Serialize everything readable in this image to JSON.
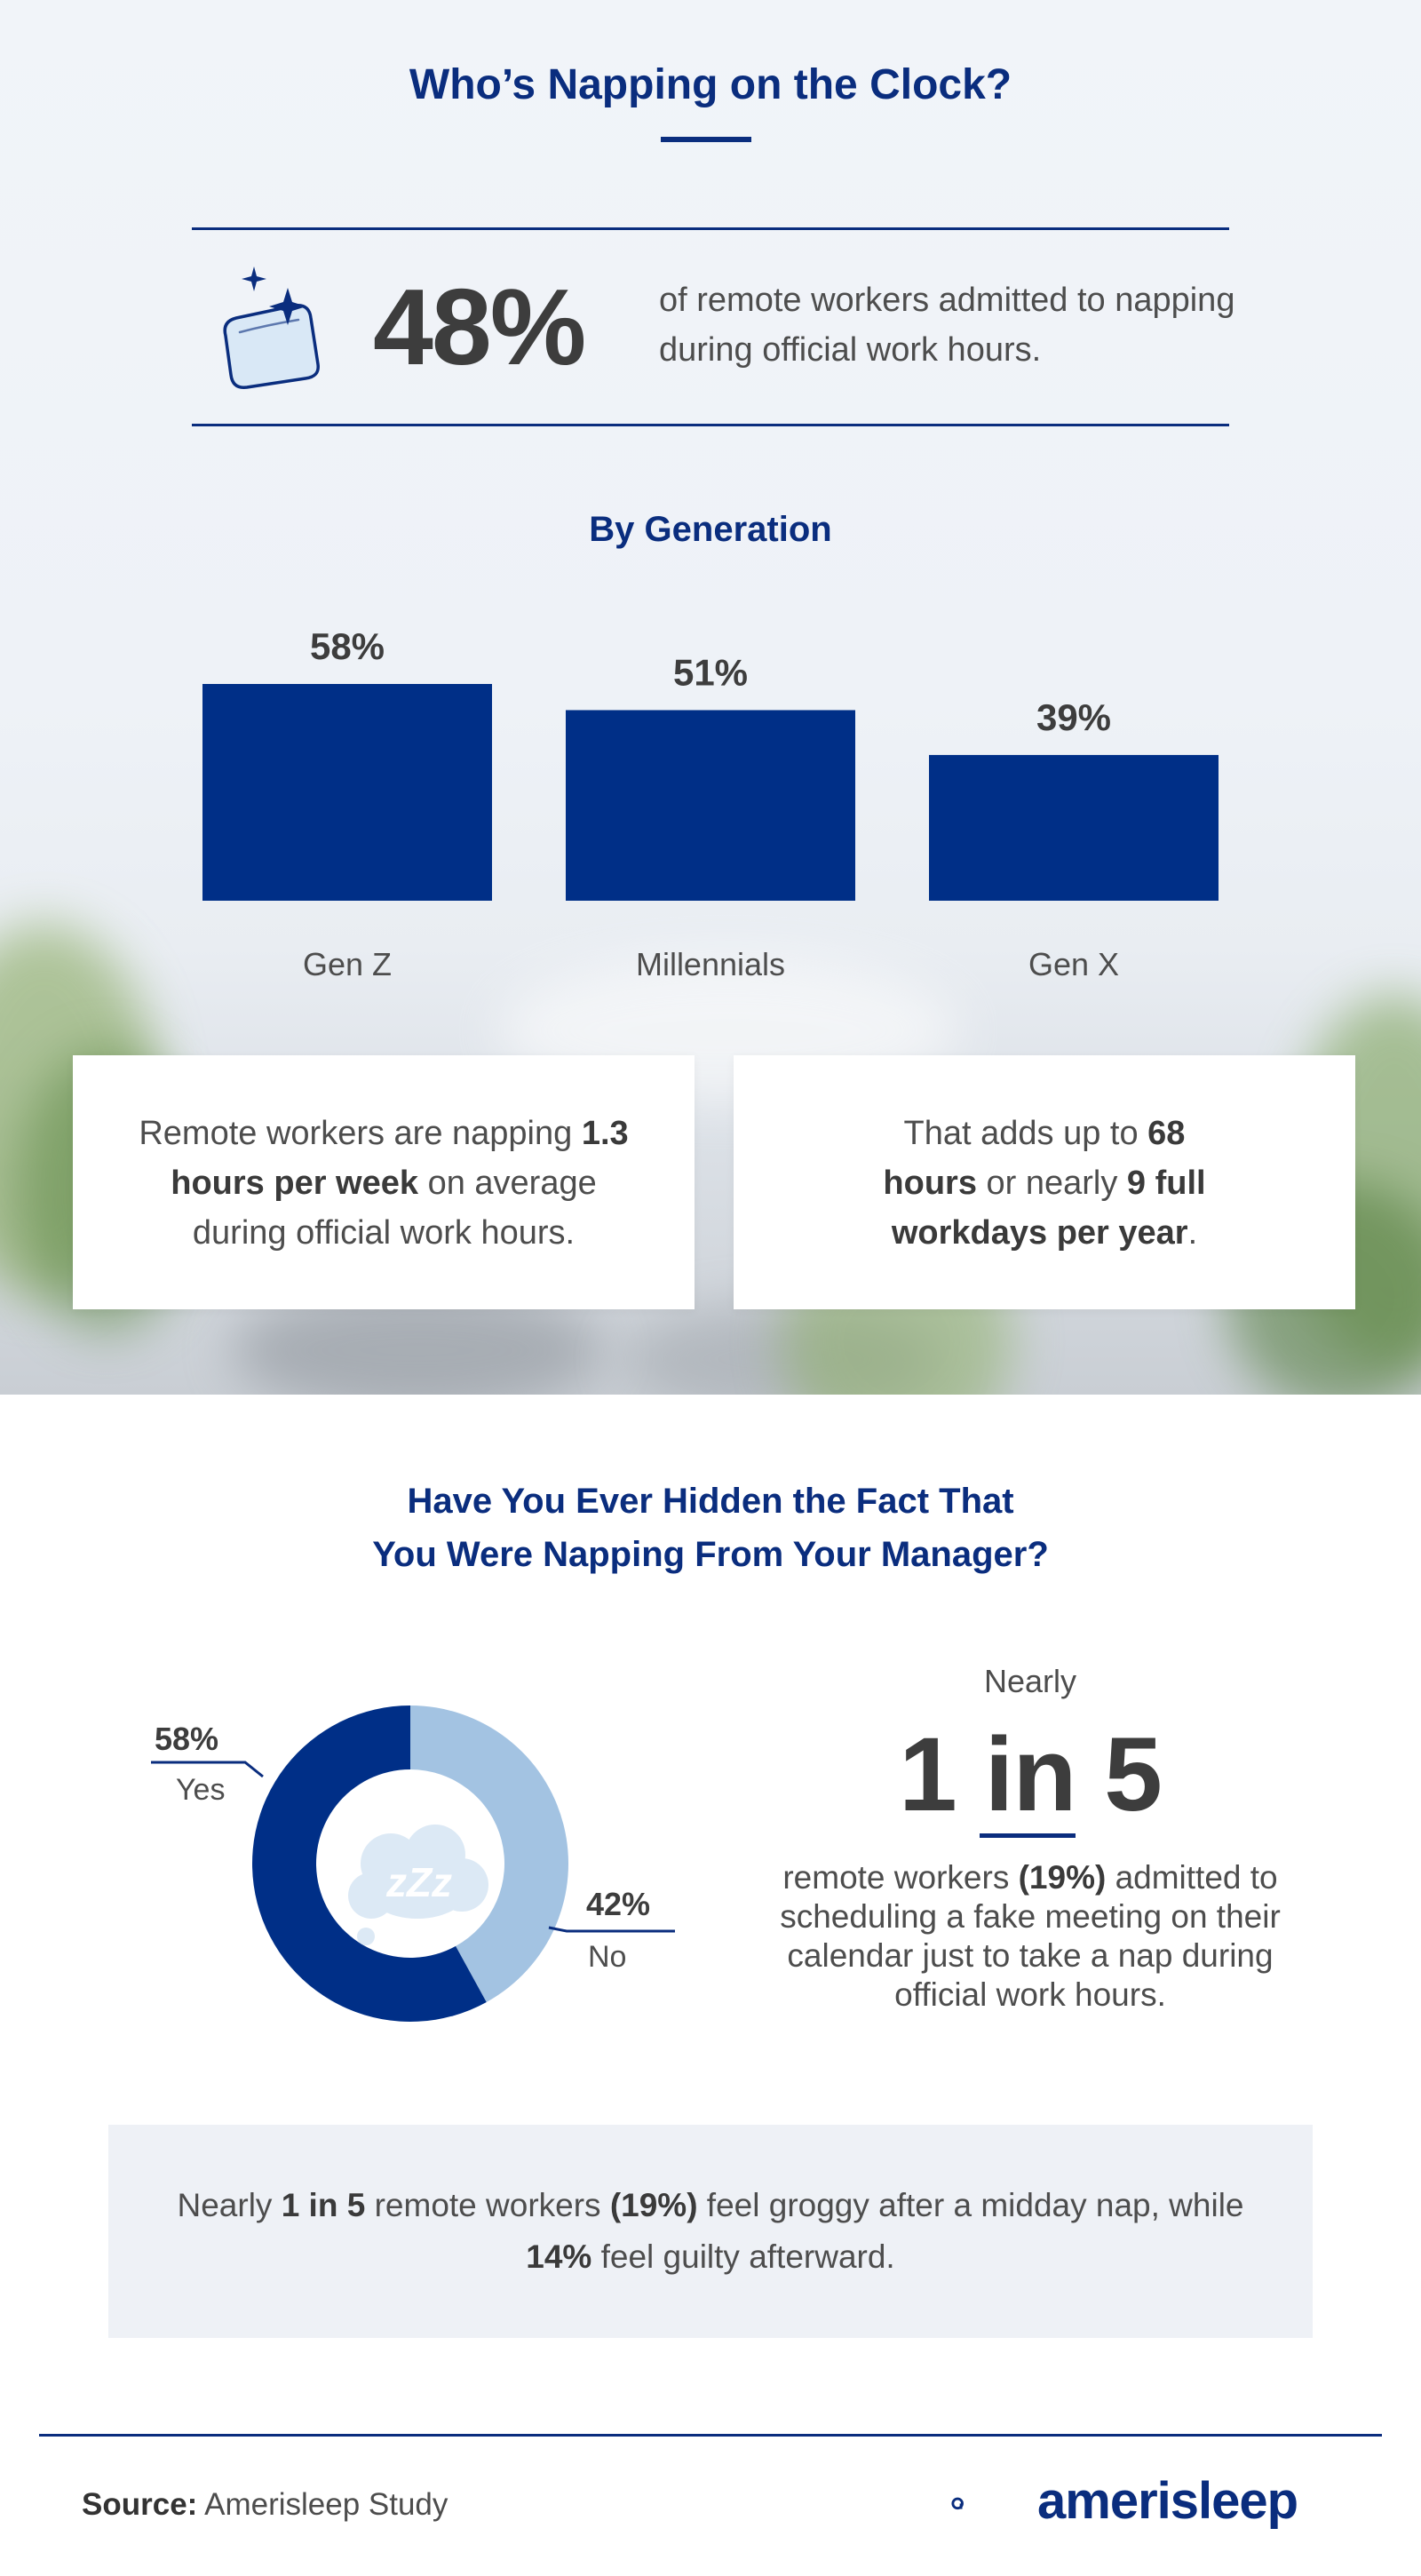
{
  "header": {
    "title": "Who’s Napping on the Clock?"
  },
  "headline_stat": {
    "value": "48%",
    "text": "of remote workers admitted to napping during official work hours.",
    "icon": "pillow-sparkles-icon"
  },
  "chart_data": [
    {
      "type": "bar",
      "title": "By Generation",
      "categories": [
        "Gen Z",
        "Millennials",
        "Gen X"
      ],
      "values": [
        58,
        51,
        39
      ],
      "value_labels": [
        "58%",
        "51%",
        "39%"
      ],
      "unit": "%",
      "ylim": [
        0,
        58
      ],
      "grid": false,
      "color": "#002f87"
    },
    {
      "type": "pie",
      "title": "Have You Ever Hidden the Fact That You Were Napping From Your Manager?",
      "categories": [
        "Yes",
        "No"
      ],
      "values": [
        58,
        42
      ],
      "value_labels": [
        "58%",
        "42%"
      ],
      "colors": [
        "#002f87",
        "#a3c3e2"
      ],
      "donut": true,
      "center_icon": "sleep-cloud-icon",
      "center_text": "zZz"
    }
  ],
  "cards": {
    "left": {
      "pre": "Remote workers are napping ",
      "bold": "1.3 hours per week",
      "post": " on average during official work hours."
    },
    "right": {
      "pre": "That adds up to ",
      "bold1": "68 hours",
      "mid": " or nearly ",
      "bold2": "9 full workdays per year",
      "post": "."
    }
  },
  "question": {
    "line1": "Have You Ever Hidden the Fact That",
    "line2": "You Were Napping From Your Manager?"
  },
  "fake_meeting": {
    "nearly": "Nearly",
    "big": "1 in 5",
    "pre": "remote workers ",
    "bold": "(19%)",
    "post": " admitted to scheduling a fake meeting on their calendar just to take a nap during official work hours."
  },
  "note": {
    "pre": "Nearly ",
    "bold1": "1 in 5",
    "mid1": " remote workers ",
    "bold2": "(19%)",
    "mid2": " feel groggy after a midday nap, while ",
    "bold3": "14%",
    "post": " feel guilty afterward."
  },
  "footer": {
    "source_label": "Source:",
    "source_value": " Amerisleep Study",
    "brand": "amerisleep",
    "brand_icon": "amerisleep-logo-icon"
  },
  "colors": {
    "navy": "#0a2d7e",
    "bar": "#002f87",
    "light_blue": "#a3c3e2",
    "note_bg": "#eef1f6"
  }
}
